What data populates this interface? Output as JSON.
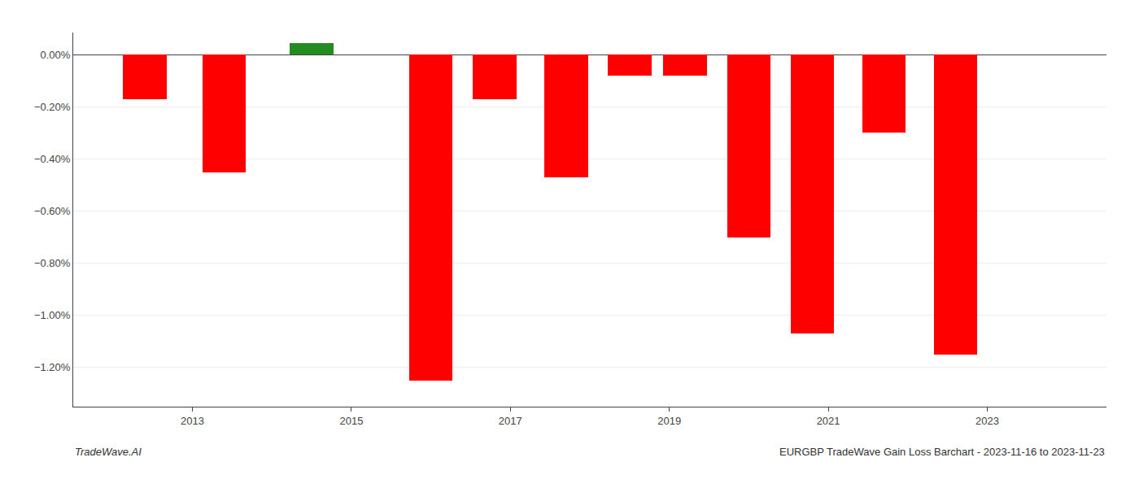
{
  "chart_data": {
    "type": "bar",
    "x": [
      2012.4,
      2013.4,
      2014.5,
      2016.0,
      2016.8,
      2017.7,
      2018.5,
      2019.2,
      2020.0,
      2020.8,
      2021.7,
      2022.6
    ],
    "values": [
      -0.0017,
      -0.0045,
      0.00045,
      -0.0125,
      -0.0017,
      -0.0047,
      -0.0008,
      -0.0008,
      -0.007,
      -0.0107,
      -0.003,
      -0.0115
    ],
    "colors": [
      "#ff0000",
      "#ff0000",
      "#228B22",
      "#ff0000",
      "#ff0000",
      "#ff0000",
      "#ff0000",
      "#ff0000",
      "#ff0000",
      "#ff0000",
      "#ff0000",
      "#ff0000"
    ],
    "xlim": [
      2011.5,
      2024.5
    ],
    "xticks": [
      2013,
      2015,
      2017,
      2019,
      2021,
      2023
    ],
    "ylim": [
      -0.0135,
      0.00085
    ],
    "yticks": [
      {
        "value": 0.0,
        "label": "0.00%"
      },
      {
        "value": -0.002,
        "label": "−0.20%"
      },
      {
        "value": -0.004,
        "label": "−0.40%"
      },
      {
        "value": -0.006,
        "label": "−0.60%"
      },
      {
        "value": -0.008,
        "label": "−0.80%"
      },
      {
        "value": -0.01,
        "label": "−1.00%"
      },
      {
        "value": -0.012,
        "label": "−1.20%"
      }
    ],
    "grid": true,
    "annotations": [
      "TradeWave.AI",
      "EURGBP TradeWave Gain Loss Barchart - 2023-11-16 to 2023-11-23"
    ]
  }
}
